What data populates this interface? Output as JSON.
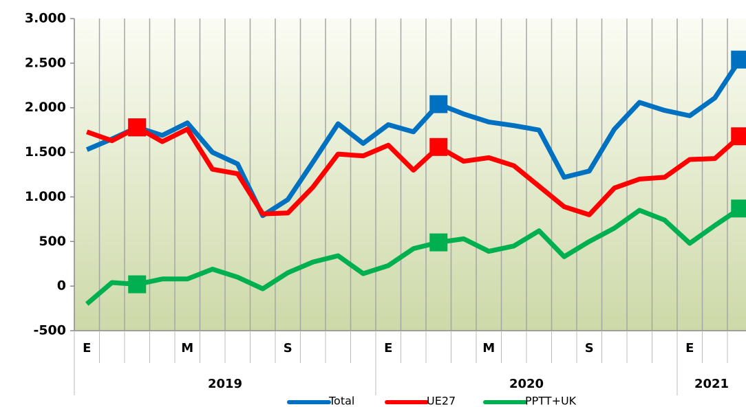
{
  "chart_data": {
    "type": "line",
    "categories": [
      "E",
      null,
      null,
      null,
      "M",
      null,
      null,
      null,
      "S",
      null,
      null,
      null,
      "E",
      null,
      null,
      null,
      "M",
      null,
      null,
      null,
      "S",
      null,
      null,
      null,
      "E",
      null,
      null
    ],
    "groups": [
      {
        "label": "2019",
        "span": 12
      },
      {
        "label": "2020",
        "span": 12
      },
      {
        "label": "2021",
        "span": 3
      }
    ],
    "series": [
      {
        "name": "Total",
        "color": "#0070c0",
        "values": [
          1530,
          1650,
          1780,
          1690,
          1830,
          1500,
          1370,
          790,
          970,
          1390,
          1820,
          1600,
          1810,
          1730,
          2040,
          1930,
          1840,
          1800,
          1750,
          1220,
          1290,
          1760,
          2060,
          1970,
          1910,
          2110,
          2540
        ]
      },
      {
        "name": "UE27",
        "color": "#ff0000",
        "values": [
          1730,
          1630,
          1780,
          1620,
          1760,
          1310,
          1260,
          810,
          820,
          1110,
          1480,
          1460,
          1580,
          1300,
          1560,
          1400,
          1440,
          1350,
          1120,
          890,
          800,
          1100,
          1200,
          1220,
          1420,
          1430,
          1680
        ]
      },
      {
        "name": "PPTT+UK",
        "color": "#00b050",
        "values": [
          -200,
          40,
          20,
          80,
          80,
          190,
          100,
          -30,
          150,
          270,
          340,
          140,
          230,
          420,
          490,
          530,
          390,
          450,
          620,
          330,
          500,
          650,
          850,
          740,
          480,
          680,
          870
        ]
      }
    ],
    "marker_indices": [
      2,
      14,
      26
    ],
    "ylim": [
      -500,
      3000
    ],
    "yticks": [
      {
        "value": -500,
        "label": "-500"
      },
      0,
      500,
      {
        "value": 1000,
        "label": "1.000"
      },
      {
        "value": 1500,
        "label": "1.500"
      },
      {
        "value": 2000,
        "label": "2.000"
      },
      {
        "value": 2500,
        "label": "2.500"
      },
      {
        "value": 3000,
        "label": "3.000"
      }
    ],
    "grid": true,
    "legend": "bottom"
  }
}
